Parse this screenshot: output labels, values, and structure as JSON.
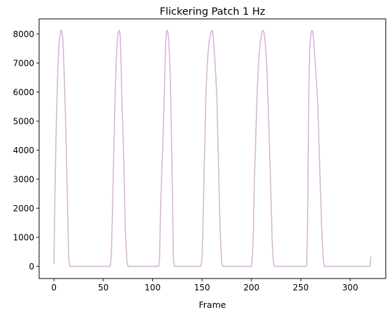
{
  "chart_data": {
    "type": "line",
    "title": "Flickering Patch 1 Hz",
    "xlabel": "Frame",
    "ylabel": "",
    "xlim": [
      -15,
      336
    ],
    "ylim": [
      -420,
      8520
    ],
    "xticks": [
      0,
      50,
      100,
      150,
      200,
      250,
      300
    ],
    "yticks": [
      0,
      1000,
      2000,
      3000,
      4000,
      5000,
      6000,
      7000,
      8000
    ],
    "grid": false,
    "line_color": "#d8b4d8",
    "series": [
      {
        "x": [
          0,
          1,
          2,
          3,
          4,
          5,
          6,
          7,
          8,
          9,
          10,
          11,
          12,
          13,
          14,
          15,
          16,
          17,
          18,
          19,
          20,
          21,
          22,
          23,
          24,
          25,
          26,
          27,
          28,
          57,
          58,
          59,
          60,
          61,
          62,
          63,
          64,
          65,
          66,
          67,
          68,
          69,
          70,
          71,
          72,
          73,
          74,
          75,
          76,
          77,
          78,
          79,
          80,
          81,
          82,
          83,
          84,
          106,
          107,
          108,
          109,
          110,
          111,
          112,
          113,
          114,
          115,
          116,
          117,
          118,
          119,
          120,
          121,
          122,
          123,
          124,
          125,
          126,
          149,
          150,
          151,
          152,
          153,
          154,
          155,
          156,
          157,
          158,
          159,
          160,
          161,
          162,
          163,
          164,
          165,
          166,
          167,
          168,
          169,
          170,
          171,
          172,
          173,
          174,
          175,
          176,
          200,
          201,
          202,
          203,
          204,
          205,
          206,
          207,
          208,
          209,
          210,
          211,
          212,
          213,
          214,
          215,
          216,
          217,
          218,
          219,
          220,
          221,
          222,
          223,
          224,
          225,
          226,
          227,
          228,
          229,
          230,
          231,
          232,
          256,
          257,
          258,
          259,
          260,
          261,
          262,
          263,
          264,
          265,
          266,
          267,
          268,
          269,
          270,
          271,
          272,
          273,
          274,
          275,
          276,
          277,
          278,
          279,
          280,
          281,
          282,
          320,
          321
        ],
        "y": [
          80,
          2500,
          4300,
          5700,
          6800,
          7600,
          7900,
          8120,
          8120,
          7800,
          7000,
          6000,
          4700,
          3300,
          1700,
          300,
          0,
          0,
          0,
          0,
          0,
          0,
          0,
          0,
          0,
          0,
          0,
          0,
          0,
          0,
          300,
          1500,
          3000,
          4500,
          6000,
          7000,
          7700,
          8050,
          8120,
          8000,
          7000,
          5500,
          4500,
          3300,
          1600,
          700,
          150,
          0,
          0,
          0,
          0,
          0,
          0,
          0,
          0,
          0,
          0,
          0,
          300,
          2000,
          3000,
          4000,
          5000,
          6200,
          7600,
          8100,
          8120,
          7900,
          7300,
          6300,
          4500,
          2500,
          300,
          0,
          0,
          0,
          0,
          0,
          0,
          300,
          1500,
          3200,
          4500,
          6000,
          6800,
          7300,
          7700,
          7900,
          8070,
          8120,
          8000,
          7600,
          7100,
          6500,
          5800,
          4400,
          3000,
          1600,
          700,
          100,
          0,
          0,
          0,
          0,
          0,
          0,
          0,
          350,
          1200,
          3000,
          4000,
          5100,
          6200,
          6900,
          7400,
          7700,
          7900,
          8100,
          8120,
          8000,
          7700,
          7200,
          6500,
          5500,
          4500,
          3300,
          2100,
          900,
          300,
          0,
          0,
          0,
          0,
          0,
          0,
          0,
          0,
          0,
          0,
          0,
          1800,
          5700,
          7500,
          7900,
          8120,
          8100,
          7800,
          7300,
          6800,
          6300,
          5700,
          4700,
          3600,
          2500,
          1500,
          700,
          150,
          0,
          0,
          0,
          0,
          0,
          0,
          0,
          0,
          0,
          0,
          330
        ]
      }
    ]
  }
}
